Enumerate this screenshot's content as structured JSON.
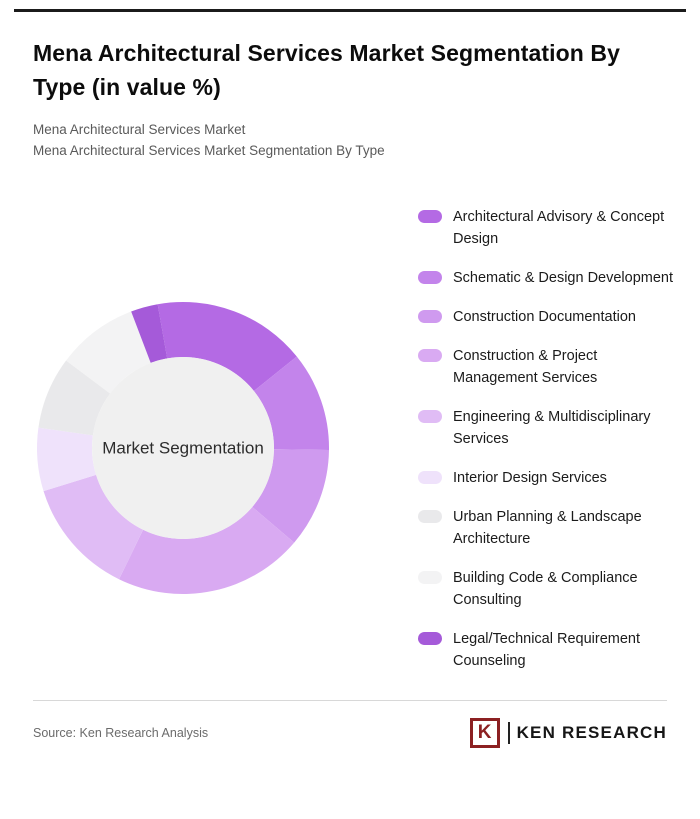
{
  "page": {
    "title": "Mena Architectural Services Market Segmentation By Type (in value %)",
    "subtitle_line1": "Mena Architectural Services Market",
    "subtitle_line2": "Mena Architectural Services Market Segmentation By Type"
  },
  "chart_data": {
    "type": "pie",
    "variant": "donut",
    "title": "Mena Architectural Services Market Segmentation By Type (in value %)",
    "center_label": "Market Segmentation",
    "center_color": "#f0f0f0",
    "start_angle": -10,
    "legend_position": "right",
    "data_labels": "none",
    "values_unit": "%",
    "values_estimated_from_arc_angles": true,
    "categories": [
      "Architectural Advisory & Concept Design",
      "Schematic & Design Development",
      "Construction Documentation",
      "Construction & Project Management Services",
      "Engineering & Multidisciplinary Services",
      "Interior Design Services",
      "Urban Planning & Landscape Architecture",
      "Building Code & Compliance Consulting",
      "Legal/Technical Requirement Counseling"
    ],
    "values": [
      17,
      11,
      11,
      21,
      13,
      7,
      8,
      9,
      3
    ],
    "colors": [
      "#b46ae4",
      "#c384eb",
      "#cf9aef",
      "#d9aaf2",
      "#e0bcf5",
      "#efe2fb",
      "#e9e9eb",
      "#f3f3f4",
      "#a55ad9"
    ]
  },
  "footer": {
    "source": "Source: Ken Research Analysis",
    "brand_initial": "K",
    "brand_name": "KEN RESEARCH",
    "brand_color": "#8c2022"
  }
}
